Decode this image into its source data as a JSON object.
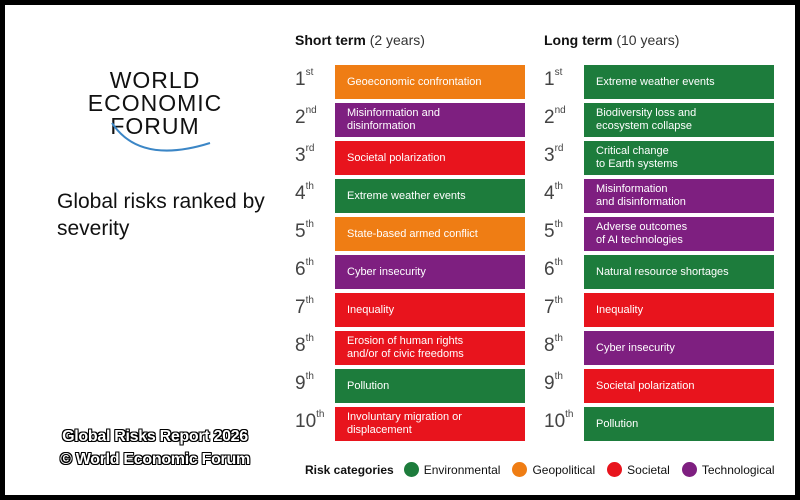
{
  "logo": {
    "lines": [
      "WORLD",
      "ECONOMIC",
      "FORUM"
    ]
  },
  "title": "Global risks ranked by severity",
  "watermark": {
    "lines": [
      "Global Risks Report 2026",
      "© World Economic Forum"
    ]
  },
  "legend": {
    "title": "Risk categories",
    "categories": [
      {
        "name": "Environmental",
        "color": "#1d7c3c"
      },
      {
        "name": "Geopolitical",
        "color": "#ef7d14"
      },
      {
        "name": "Societal",
        "color": "#e8141d"
      },
      {
        "name": "Technological",
        "color": "#7e1f80"
      }
    ]
  },
  "ranks": [
    {
      "number": "1",
      "suffix": "st"
    },
    {
      "number": "2",
      "suffix": "nd"
    },
    {
      "number": "3",
      "suffix": "rd"
    },
    {
      "number": "4",
      "suffix": "th"
    },
    {
      "number": "5",
      "suffix": "th"
    },
    {
      "number": "6",
      "suffix": "th"
    },
    {
      "number": "7",
      "suffix": "th"
    },
    {
      "number": "8",
      "suffix": "th"
    },
    {
      "number": "9",
      "suffix": "th"
    },
    {
      "number": "10",
      "suffix": "th"
    }
  ],
  "columns": [
    {
      "heading": "Short term",
      "period": "(2 years)",
      "items": [
        {
          "label": [
            "Geoeconomic confrontation"
          ],
          "category": "Geopolitical"
        },
        {
          "label": [
            "Misinformation and",
            "disinformation"
          ],
          "category": "Technological"
        },
        {
          "label": [
            "Societal polarization"
          ],
          "category": "Societal"
        },
        {
          "label": [
            "Extreme weather events"
          ],
          "category": "Environmental"
        },
        {
          "label": [
            "State-based armed conflict"
          ],
          "category": "Geopolitical"
        },
        {
          "label": [
            "Cyber insecurity"
          ],
          "category": "Technological"
        },
        {
          "label": [
            "Inequality"
          ],
          "category": "Societal"
        },
        {
          "label": [
            "Erosion of human rights",
            "and/or of civic freedoms"
          ],
          "category": "Societal"
        },
        {
          "label": [
            "Pollution"
          ],
          "category": "Environmental"
        },
        {
          "label": [
            "Involuntary migration or",
            "displacement"
          ],
          "category": "Societal"
        }
      ]
    },
    {
      "heading": "Long term",
      "period": "(10 years)",
      "items": [
        {
          "label": [
            "Extreme weather events"
          ],
          "category": "Environmental"
        },
        {
          "label": [
            "Biodiversity loss and",
            "ecosystem collapse"
          ],
          "category": "Environmental"
        },
        {
          "label": [
            "Critical change",
            "to Earth systems"
          ],
          "category": "Environmental"
        },
        {
          "label": [
            "Misinformation",
            "and disinformation"
          ],
          "category": "Technological"
        },
        {
          "label": [
            "Adverse outcomes",
            "of AI technologies"
          ],
          "category": "Technological"
        },
        {
          "label": [
            "Natural resource shortages"
          ],
          "category": "Environmental"
        },
        {
          "label": [
            "Inequality"
          ],
          "category": "Societal"
        },
        {
          "label": [
            "Cyber insecurity"
          ],
          "category": "Technological"
        },
        {
          "label": [
            "Societal polarization"
          ],
          "category": "Societal"
        },
        {
          "label": [
            "Pollution"
          ],
          "category": "Environmental"
        }
      ]
    }
  ]
}
